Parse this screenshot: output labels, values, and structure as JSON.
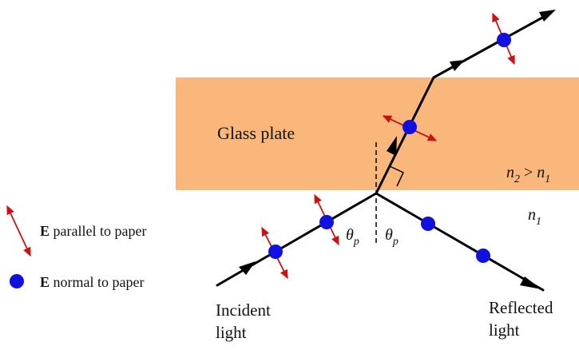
{
  "diagram": {
    "plate_label": "Glass plate",
    "index_relation": {
      "left": "n",
      "left_sub": "2",
      "op": " > ",
      "right": "n",
      "right_sub": "1"
    },
    "medium_label": {
      "symbol": "n",
      "sub": "1"
    },
    "angle_left": {
      "symbol": "θ",
      "sub": "p"
    },
    "angle_right": {
      "symbol": "θ",
      "sub": "p"
    },
    "incident": [
      "Incident",
      "light"
    ],
    "reflected": [
      "Reflected",
      "light"
    ],
    "legend": {
      "parallel": {
        "bold": "E",
        "text": " parallel to paper"
      },
      "normal": {
        "bold": "E",
        "text": " normal to paper"
      }
    },
    "colors": {
      "plate": "#f9b77c",
      "ray": "#000000",
      "dot": "#1010e0",
      "arrow_red": "#cc1111"
    },
    "icons": [
      "arrowhead",
      "double-arrow",
      "blue-dot",
      "right-angle-mark"
    ]
  }
}
